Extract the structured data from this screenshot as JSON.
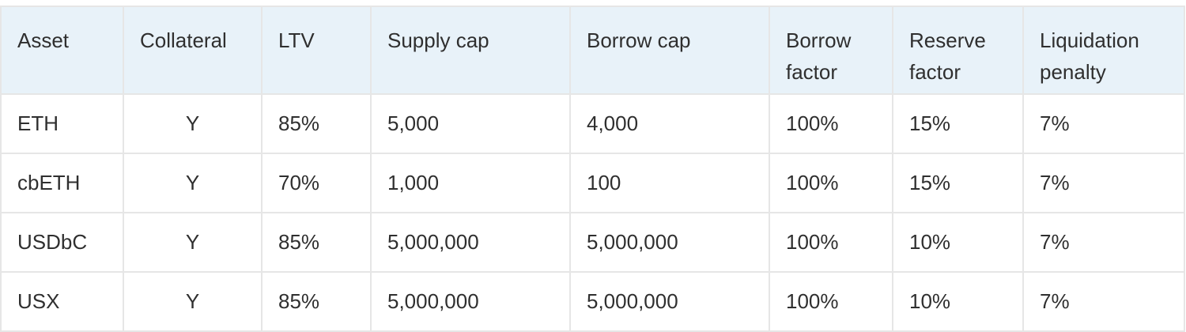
{
  "table": {
    "headers": [
      "Asset",
      "Collateral",
      "LTV",
      "Supply cap",
      "Borrow cap",
      "Borrow factor",
      "Reserve factor",
      "Liquidation penalty"
    ],
    "rows": [
      [
        "ETH",
        "Y",
        "85%",
        "5,000",
        "4,000",
        "100%",
        "15%",
        "7%"
      ],
      [
        "cbETH",
        "Y",
        "70%",
        "1,000",
        "100",
        "100%",
        "15%",
        "7%"
      ],
      [
        "USDbC",
        "Y",
        "85%",
        "5,000,000",
        "5,000,000",
        "100%",
        "10%",
        "7%"
      ],
      [
        "USX",
        "Y",
        "85%",
        "5,000,000",
        "5,000,000",
        "100%",
        "10%",
        "7%"
      ]
    ]
  },
  "colors": {
    "header_bg": "#e8f2f9",
    "border": "#e6e6e6",
    "text": "#2f2f2f"
  }
}
